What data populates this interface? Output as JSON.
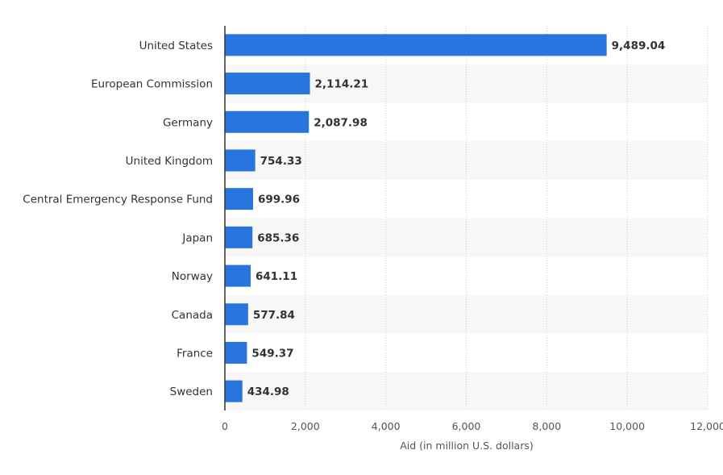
{
  "chart_data": {
    "type": "bar",
    "orientation": "horizontal",
    "categories": [
      "United States",
      "European Commission",
      "Germany",
      "United Kingdom",
      "Central Emergency Response Fund",
      "Japan",
      "Norway",
      "Canada",
      "France",
      "Sweden"
    ],
    "values": [
      9489.04,
      2114.21,
      2087.98,
      754.33,
      699.96,
      685.36,
      641.11,
      577.84,
      549.37,
      434.98
    ],
    "value_labels": [
      "9,489.04",
      "2,114.21",
      "2,087.98",
      "754.33",
      "699.96",
      "685.36",
      "641.11",
      "577.84",
      "549.37",
      "434.98"
    ],
    "title": "",
    "xlabel": "Aid (in million U.S. dollars)",
    "ylabel": "",
    "xlim": [
      0,
      12000
    ],
    "x_ticks": [
      0,
      2000,
      4000,
      6000,
      8000,
      10000,
      12000
    ],
    "x_tick_labels": [
      "0",
      "2,000",
      "4,000",
      "6,000",
      "8,000",
      "10,000",
      "12,000"
    ],
    "grid": true,
    "legend": "none",
    "bar_color": "#2876dd",
    "band_color": "#f7f7f7"
  }
}
